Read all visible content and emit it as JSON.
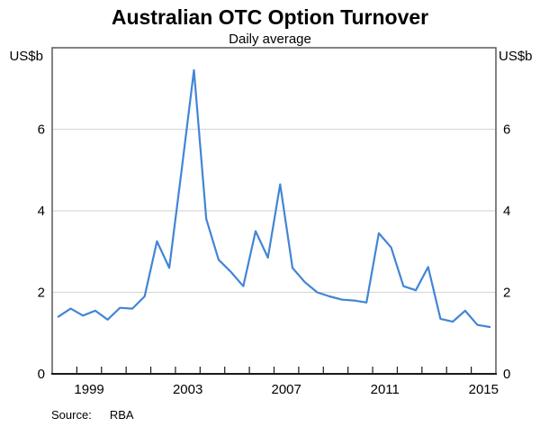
{
  "header": {
    "title": "Australian OTC Option Turnover",
    "subtitle": "Daily average"
  },
  "chart": {
    "unit": "US$b",
    "colors": {
      "line": "#4285d6",
      "grid": "#d9d9d9",
      "frame": "#595959",
      "axis": "#1a1a1a",
      "text": "#000000"
    },
    "chart_data": {
      "type": "line",
      "title": "Australian OTC Option Turnover",
      "subtitle": "Daily average",
      "ylabel": "US$b",
      "ylabel_right": "US$b",
      "ylim": [
        0,
        8
      ],
      "yticks": [
        0,
        2,
        4,
        6
      ],
      "xlim": [
        1998,
        2016
      ],
      "xticks": [
        1999,
        2000,
        2001,
        2002,
        2003,
        2004,
        2005,
        2006,
        2007,
        2008,
        2009,
        2010,
        2011,
        2012,
        2013,
        2014,
        2015
      ],
      "xtick_labels": [
        {
          "year": 1999,
          "label": "1999"
        },
        {
          "year": 2003,
          "label": "2003"
        },
        {
          "year": 2007,
          "label": "2007"
        },
        {
          "year": 2011,
          "label": "2011"
        },
        {
          "year": 2015,
          "label": "2015"
        }
      ],
      "grid": "horizontal",
      "legend": "none",
      "series": [
        {
          "name": "Australian OTC option turnover, daily average (US$b)",
          "periods": [
            "1998 H1",
            "1998 H2",
            "1999 H1",
            "1999 H2",
            "2000 H1",
            "2000 H2",
            "2001 H1",
            "2001 H2",
            "2002 H1",
            "2002 H2",
            "2003 H1",
            "2003 H2",
            "2004 H1",
            "2004 H2",
            "2005 H1",
            "2005 H2",
            "2006 H1",
            "2006 H2",
            "2007 H1",
            "2007 H2",
            "2008 H1",
            "2008 H2",
            "2009 H1",
            "2009 H2",
            "2010 H1",
            "2010 H2",
            "2011 H1",
            "2011 H2",
            "2012 H1",
            "2012 H2",
            "2013 H1",
            "2013 H2",
            "2014 H1",
            "2014 H2",
            "2015 H1",
            "2015 H2"
          ],
          "x": [
            1998.25,
            1998.75,
            1999.25,
            1999.75,
            2000.25,
            2000.75,
            2001.25,
            2001.75,
            2002.25,
            2002.75,
            2003.25,
            2003.75,
            2004.25,
            2004.75,
            2005.25,
            2005.75,
            2006.25,
            2006.75,
            2007.25,
            2007.75,
            2008.25,
            2008.75,
            2009.25,
            2009.75,
            2010.25,
            2010.75,
            2011.25,
            2011.75,
            2012.25,
            2012.75,
            2013.25,
            2013.75,
            2014.25,
            2014.75,
            2015.25,
            2015.75
          ],
          "values": [
            1.4,
            1.6,
            1.43,
            1.55,
            1.33,
            1.62,
            1.6,
            1.9,
            3.25,
            2.6,
            5.0,
            7.45,
            3.8,
            2.8,
            2.5,
            2.15,
            3.5,
            2.85,
            4.65,
            2.6,
            2.25,
            2.0,
            1.9,
            1.82,
            1.8,
            1.75,
            3.45,
            3.1,
            2.15,
            2.05,
            2.62,
            1.35,
            1.28,
            1.55,
            1.2,
            1.15
          ]
        }
      ]
    }
  },
  "footer": {
    "source_label": "Source:",
    "source_value": "RBA"
  }
}
